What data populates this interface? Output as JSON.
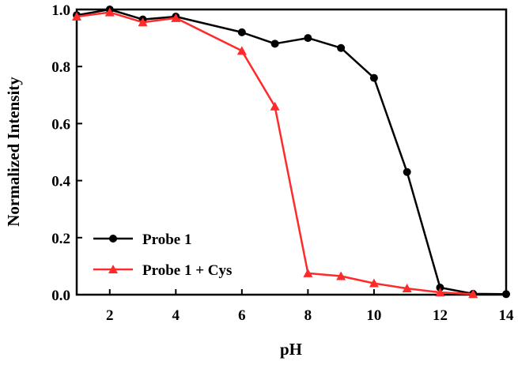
{
  "chart_data": {
    "type": "line",
    "xlabel": "pH",
    "ylabel": "Normalized Intensity",
    "xlim": [
      1,
      14
    ],
    "ylim": [
      0,
      1.0
    ],
    "xticks": [
      2,
      4,
      6,
      8,
      10,
      12,
      14
    ],
    "yticks": [
      0.0,
      0.2,
      0.4,
      0.6,
      0.8,
      1.0
    ],
    "xtick_labels": [
      "2",
      "4",
      "6",
      "8",
      "10",
      "12",
      "14"
    ],
    "ytick_labels": [
      "0.0",
      "0.2",
      "0.4",
      "0.6",
      "0.8",
      "1.0"
    ],
    "grid": false,
    "legend_position": "bottom-left",
    "series": [
      {
        "name": "Probe 1",
        "color": "#000000",
        "marker": "circle",
        "x": [
          1,
          2,
          3,
          4,
          6,
          7,
          8,
          9,
          10,
          11,
          12,
          13,
          14
        ],
        "y": [
          0.98,
          1.0,
          0.965,
          0.975,
          0.92,
          0.88,
          0.9,
          0.865,
          0.76,
          0.43,
          0.025,
          0.003,
          0.002
        ]
      },
      {
        "name": "Probe 1 + Cys",
        "color": "#ff2a2a",
        "marker": "triangle",
        "x": [
          1,
          2,
          3,
          4,
          6,
          7,
          8,
          9,
          10,
          11,
          12,
          13
        ],
        "y": [
          0.975,
          0.99,
          0.955,
          0.97,
          0.855,
          0.66,
          0.075,
          0.065,
          0.04,
          0.022,
          0.008,
          0.002
        ]
      }
    ]
  }
}
